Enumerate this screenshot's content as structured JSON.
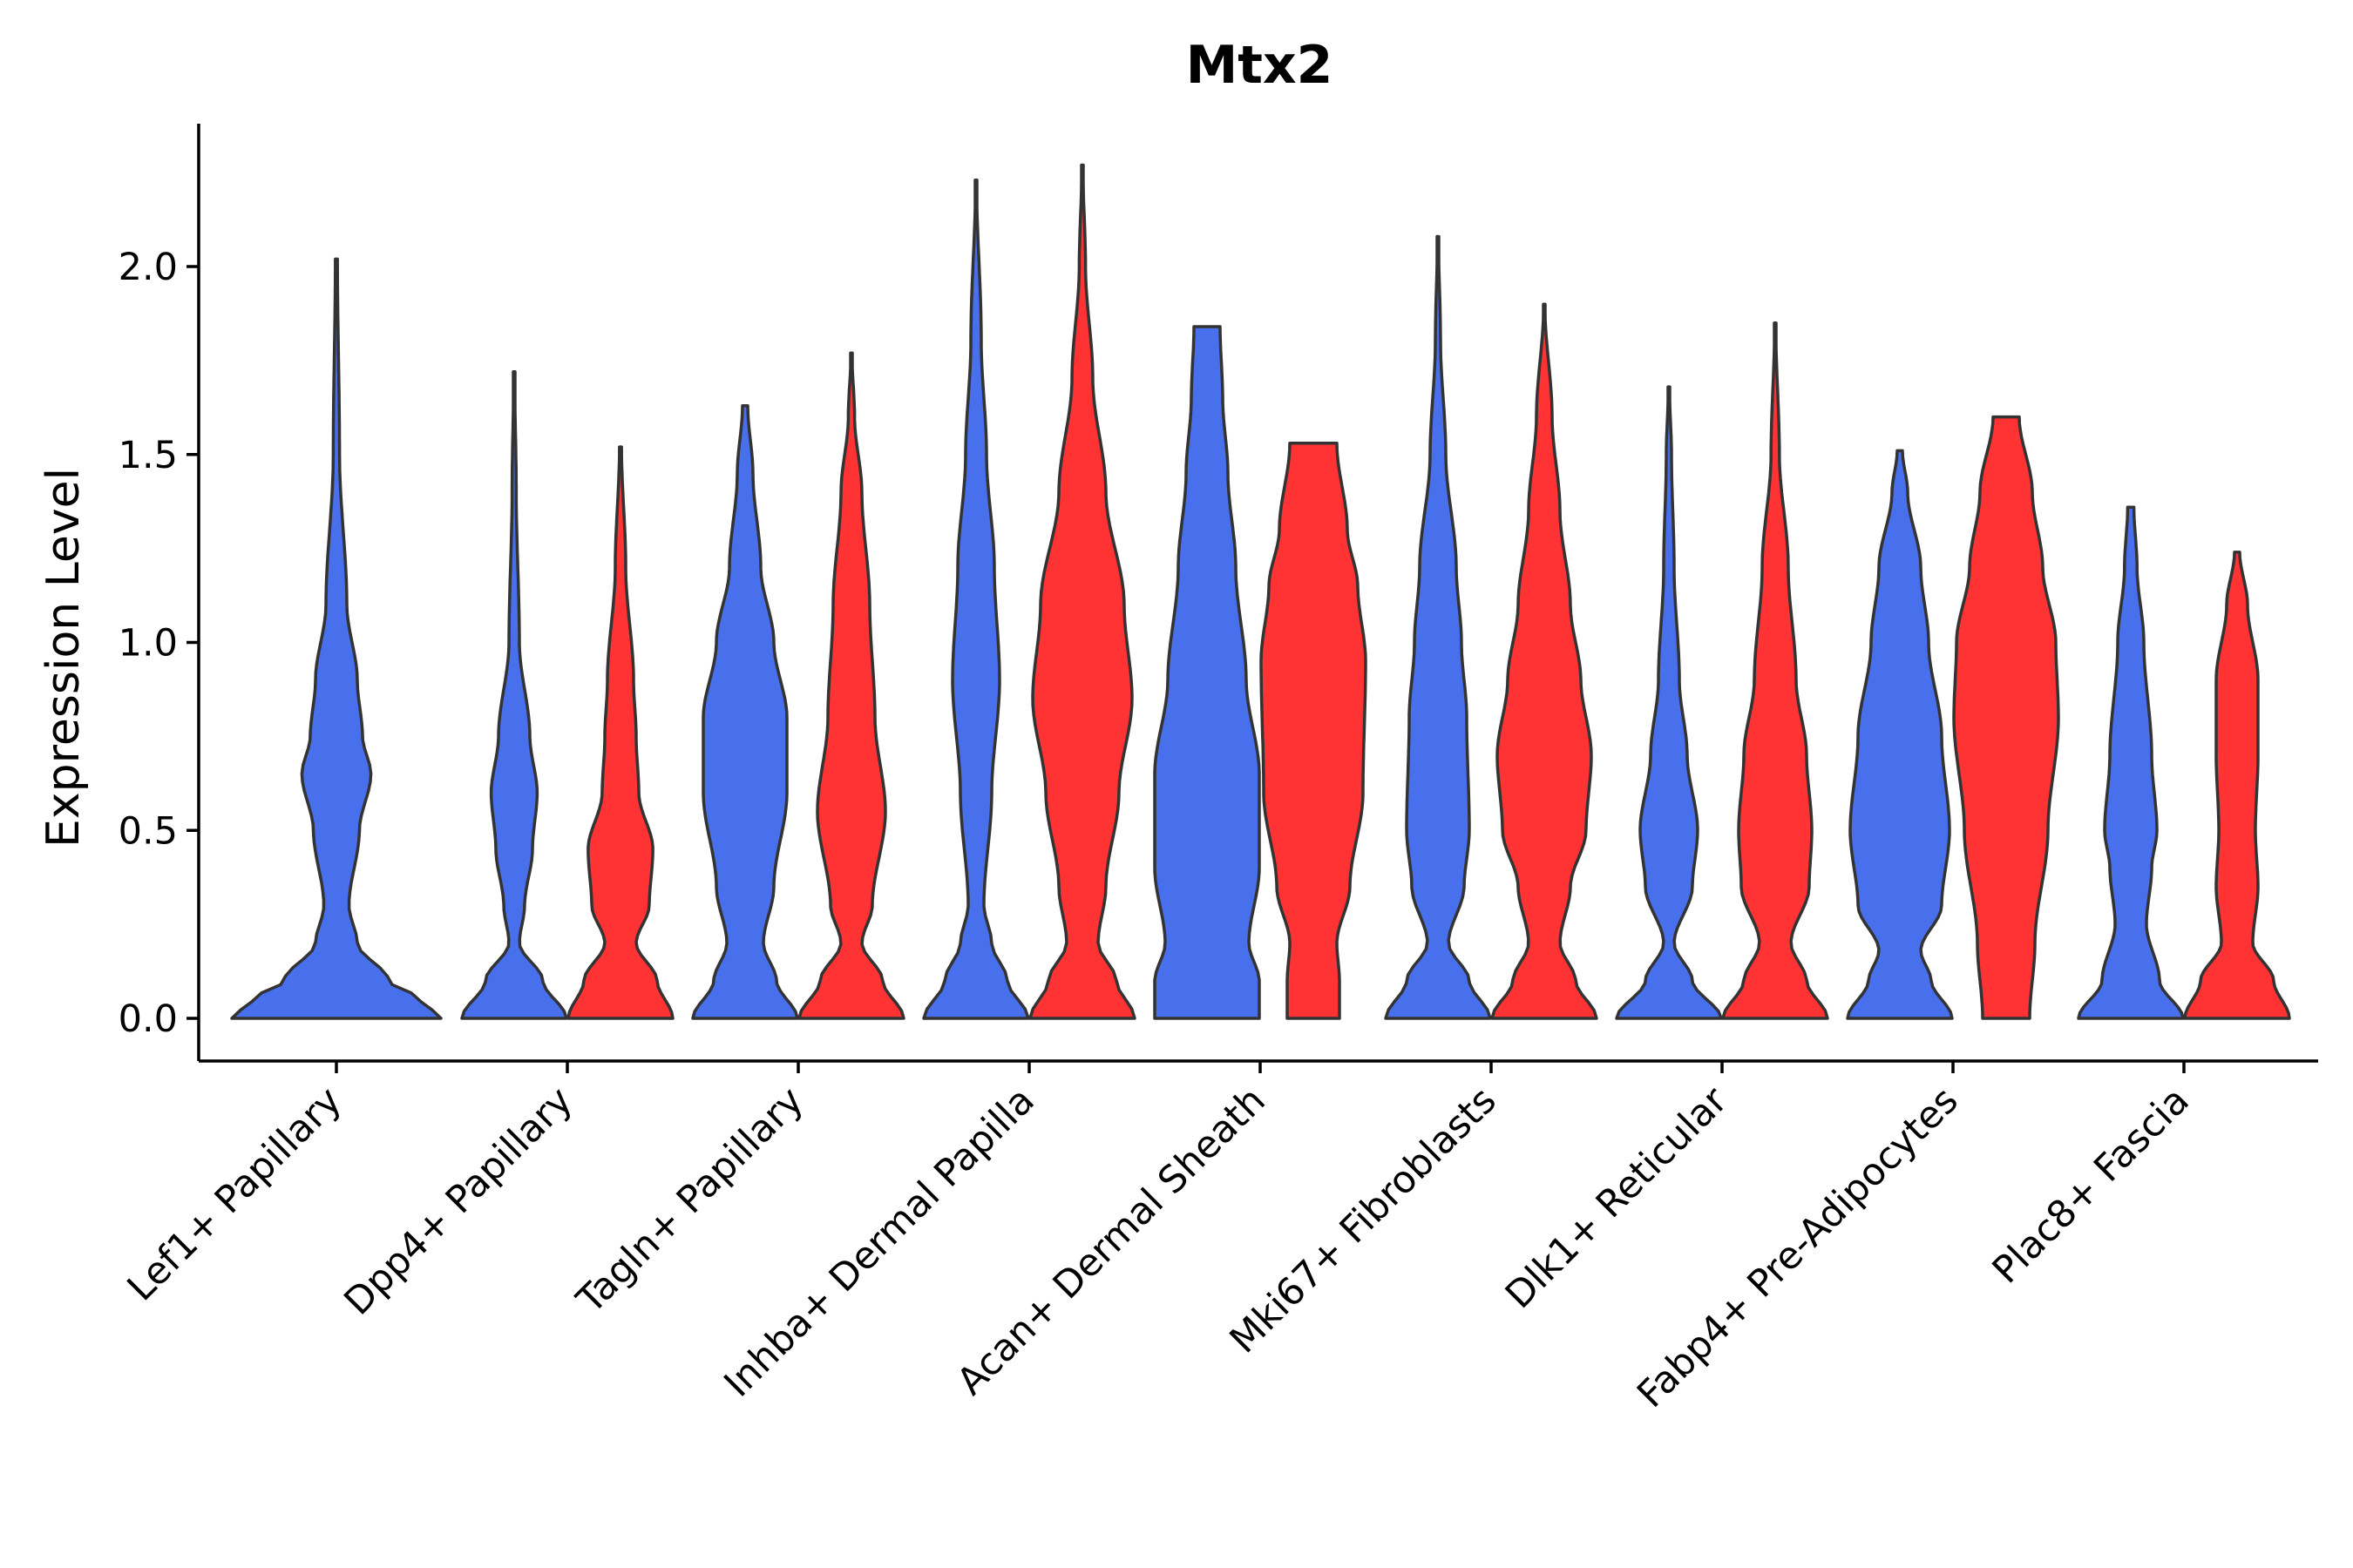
{
  "chart_data": {
    "type": "violin",
    "title": "Mtx2",
    "xlabel": "",
    "ylabel": "Expression Level",
    "ylim": [
      -0.11,
      2.38
    ],
    "yticks": [
      0.0,
      0.5,
      1.0,
      1.5,
      2.0
    ],
    "ytick_labels": [
      "0.0",
      "0.5",
      "1.0",
      "1.5",
      "2.0"
    ],
    "colors": {
      "series_a": "#4870EC",
      "series_b": "#FF3333",
      "outline": "#333333"
    },
    "categories": [
      "Lef1+ Papillary",
      "Dpp4+ Papillary",
      "Tagln+ Papillary",
      "Inhba+ Dermal Papilla",
      "Acan+ Dermal Sheath",
      "Mki67+ Fibroblasts",
      "Dlk1+ Reticular",
      "Fabp4+ Pre-Adipocytes",
      "Plac8+ Fascia"
    ],
    "series": [
      {
        "name": "blue",
        "color": "#4870EC",
        "max": [
          2.02,
          1.72,
          1.63,
          2.23,
          1.84,
          2.08,
          1.68,
          1.51,
          1.36
        ],
        "shape": [
          [
            [
              0,
              1
            ],
            [
              0.05,
              0.8
            ],
            [
              0.1,
              0.5
            ],
            [
              0.2,
              0.2
            ],
            [
              0.3,
              0.12
            ],
            [
              0.5,
              0.22
            ],
            [
              0.65,
              0.33
            ],
            [
              0.75,
              0.25
            ],
            [
              0.9,
              0.2
            ],
            [
              1.1,
              0.1
            ],
            [
              1.5,
              0.03
            ],
            [
              2.02,
              0.01
            ]
          ],
          [
            [
              0,
              1
            ],
            [
              0.1,
              0.55
            ],
            [
              0.2,
              0.1
            ],
            [
              0.3,
              0.2
            ],
            [
              0.45,
              0.35
            ],
            [
              0.6,
              0.44
            ],
            [
              0.75,
              0.3
            ],
            [
              1.0,
              0.1
            ],
            [
              1.4,
              0.04
            ],
            [
              1.72,
              0.01
            ]
          ],
          [
            [
              0,
              1
            ],
            [
              0.1,
              0.6
            ],
            [
              0.2,
              0.35
            ],
            [
              0.35,
              0.55
            ],
            [
              0.6,
              0.8
            ],
            [
              0.8,
              0.8
            ],
            [
              1.0,
              0.55
            ],
            [
              1.2,
              0.3
            ],
            [
              1.45,
              0.15
            ],
            [
              1.63,
              0.05
            ]
          ],
          [
            [
              0,
              1
            ],
            [
              0.1,
              0.6
            ],
            [
              0.2,
              0.3
            ],
            [
              0.3,
              0.15
            ],
            [
              0.6,
              0.3
            ],
            [
              0.9,
              0.45
            ],
            [
              1.2,
              0.35
            ],
            [
              1.5,
              0.2
            ],
            [
              1.8,
              0.1
            ],
            [
              2.23,
              0.01
            ]
          ],
          [
            [
              0,
              1
            ],
            [
              0.1,
              1
            ],
            [
              0.2,
              0.8
            ],
            [
              0.4,
              1.0
            ],
            [
              0.65,
              1.0
            ],
            [
              0.9,
              0.75
            ],
            [
              1.2,
              0.55
            ],
            [
              1.45,
              0.4
            ],
            [
              1.65,
              0.3
            ],
            [
              1.84,
              0.25
            ]
          ],
          [
            [
              0,
              1
            ],
            [
              0.1,
              0.6
            ],
            [
              0.2,
              0.2
            ],
            [
              0.35,
              0.5
            ],
            [
              0.5,
              0.6
            ],
            [
              0.8,
              0.55
            ],
            [
              1.0,
              0.45
            ],
            [
              1.2,
              0.35
            ],
            [
              1.5,
              0.15
            ],
            [
              1.8,
              0.05
            ],
            [
              2.08,
              0.01
            ]
          ],
          [
            [
              0,
              1
            ],
            [
              0.1,
              0.45
            ],
            [
              0.2,
              0.1
            ],
            [
              0.35,
              0.45
            ],
            [
              0.5,
              0.55
            ],
            [
              0.7,
              0.35
            ],
            [
              0.9,
              0.2
            ],
            [
              1.2,
              0.1
            ],
            [
              1.5,
              0.05
            ],
            [
              1.68,
              0.01
            ]
          ],
          [
            [
              0,
              1
            ],
            [
              0.1,
              0.6
            ],
            [
              0.18,
              0.4
            ],
            [
              0.3,
              0.8
            ],
            [
              0.5,
              0.95
            ],
            [
              0.75,
              0.8
            ],
            [
              1.0,
              0.55
            ],
            [
              1.2,
              0.4
            ],
            [
              1.4,
              0.15
            ],
            [
              1.51,
              0.05
            ]
          ],
          [
            [
              0,
              1
            ],
            [
              0.1,
              0.55
            ],
            [
              0.25,
              0.3
            ],
            [
              0.4,
              0.4
            ],
            [
              0.5,
              0.5
            ],
            [
              0.7,
              0.4
            ],
            [
              1.0,
              0.25
            ],
            [
              1.2,
              0.12
            ],
            [
              1.36,
              0.06
            ]
          ]
        ]
      },
      {
        "name": "red",
        "color": "#FF3333",
        "max": [
          null,
          1.52,
          1.77,
          2.27,
          1.53,
          1.9,
          1.85,
          1.6,
          1.24
        ],
        "shape": [
          null,
          [
            [
              0,
              1
            ],
            [
              0.1,
              0.7
            ],
            [
              0.2,
              0.3
            ],
            [
              0.3,
              0.55
            ],
            [
              0.45,
              0.62
            ],
            [
              0.6,
              0.35
            ],
            [
              0.75,
              0.3
            ],
            [
              0.9,
              0.25
            ],
            [
              1.2,
              0.1
            ],
            [
              1.52,
              0.02
            ]
          ],
          [
            [
              0,
              1
            ],
            [
              0.1,
              0.6
            ],
            [
              0.2,
              0.2
            ],
            [
              0.3,
              0.4
            ],
            [
              0.55,
              0.65
            ],
            [
              0.8,
              0.45
            ],
            [
              1.1,
              0.35
            ],
            [
              1.4,
              0.2
            ],
            [
              1.6,
              0.06
            ],
            [
              1.77,
              0.01
            ]
          ],
          [
            [
              0,
              1
            ],
            [
              0.1,
              0.65
            ],
            [
              0.2,
              0.3
            ],
            [
              0.35,
              0.45
            ],
            [
              0.6,
              0.7
            ],
            [
              0.85,
              0.95
            ],
            [
              1.1,
              0.8
            ],
            [
              1.4,
              0.45
            ],
            [
              1.7,
              0.2
            ],
            [
              2.0,
              0.06
            ],
            [
              2.27,
              0.01
            ]
          ],
          [
            [
              0,
              0.5
            ],
            [
              0.1,
              0.5
            ],
            [
              0.2,
              0.45
            ],
            [
              0.35,
              0.7
            ],
            [
              0.6,
              0.95
            ],
            [
              0.95,
              1.0
            ],
            [
              1.15,
              0.85
            ],
            [
              1.3,
              0.65
            ],
            [
              1.53,
              0.45
            ]
          ],
          [
            [
              0,
              1
            ],
            [
              0.1,
              0.6
            ],
            [
              0.2,
              0.3
            ],
            [
              0.35,
              0.5
            ],
            [
              0.5,
              0.8
            ],
            [
              0.7,
              0.9
            ],
            [
              0.9,
              0.7
            ],
            [
              1.1,
              0.5
            ],
            [
              1.35,
              0.3
            ],
            [
              1.6,
              0.15
            ],
            [
              1.9,
              0.01
            ]
          ],
          [
            [
              0,
              1
            ],
            [
              0.1,
              0.6
            ],
            [
              0.2,
              0.3
            ],
            [
              0.35,
              0.65
            ],
            [
              0.5,
              0.7
            ],
            [
              0.7,
              0.6
            ],
            [
              0.9,
              0.4
            ],
            [
              1.2,
              0.25
            ],
            [
              1.5,
              0.08
            ],
            [
              1.85,
              0.01
            ]
          ],
          [
            [
              0,
              0.45
            ],
            [
              0.2,
              0.55
            ],
            [
              0.5,
              0.8
            ],
            [
              0.8,
              1.0
            ],
            [
              1.0,
              0.95
            ],
            [
              1.2,
              0.7
            ],
            [
              1.4,
              0.5
            ],
            [
              1.6,
              0.25
            ]
          ],
          [
            [
              0,
              1
            ],
            [
              0.1,
              0.7
            ],
            [
              0.2,
              0.3
            ],
            [
              0.35,
              0.4
            ],
            [
              0.5,
              0.35
            ],
            [
              0.7,
              0.4
            ],
            [
              0.9,
              0.4
            ],
            [
              1.1,
              0.2
            ],
            [
              1.24,
              0.05
            ]
          ]
        ]
      }
    ]
  }
}
